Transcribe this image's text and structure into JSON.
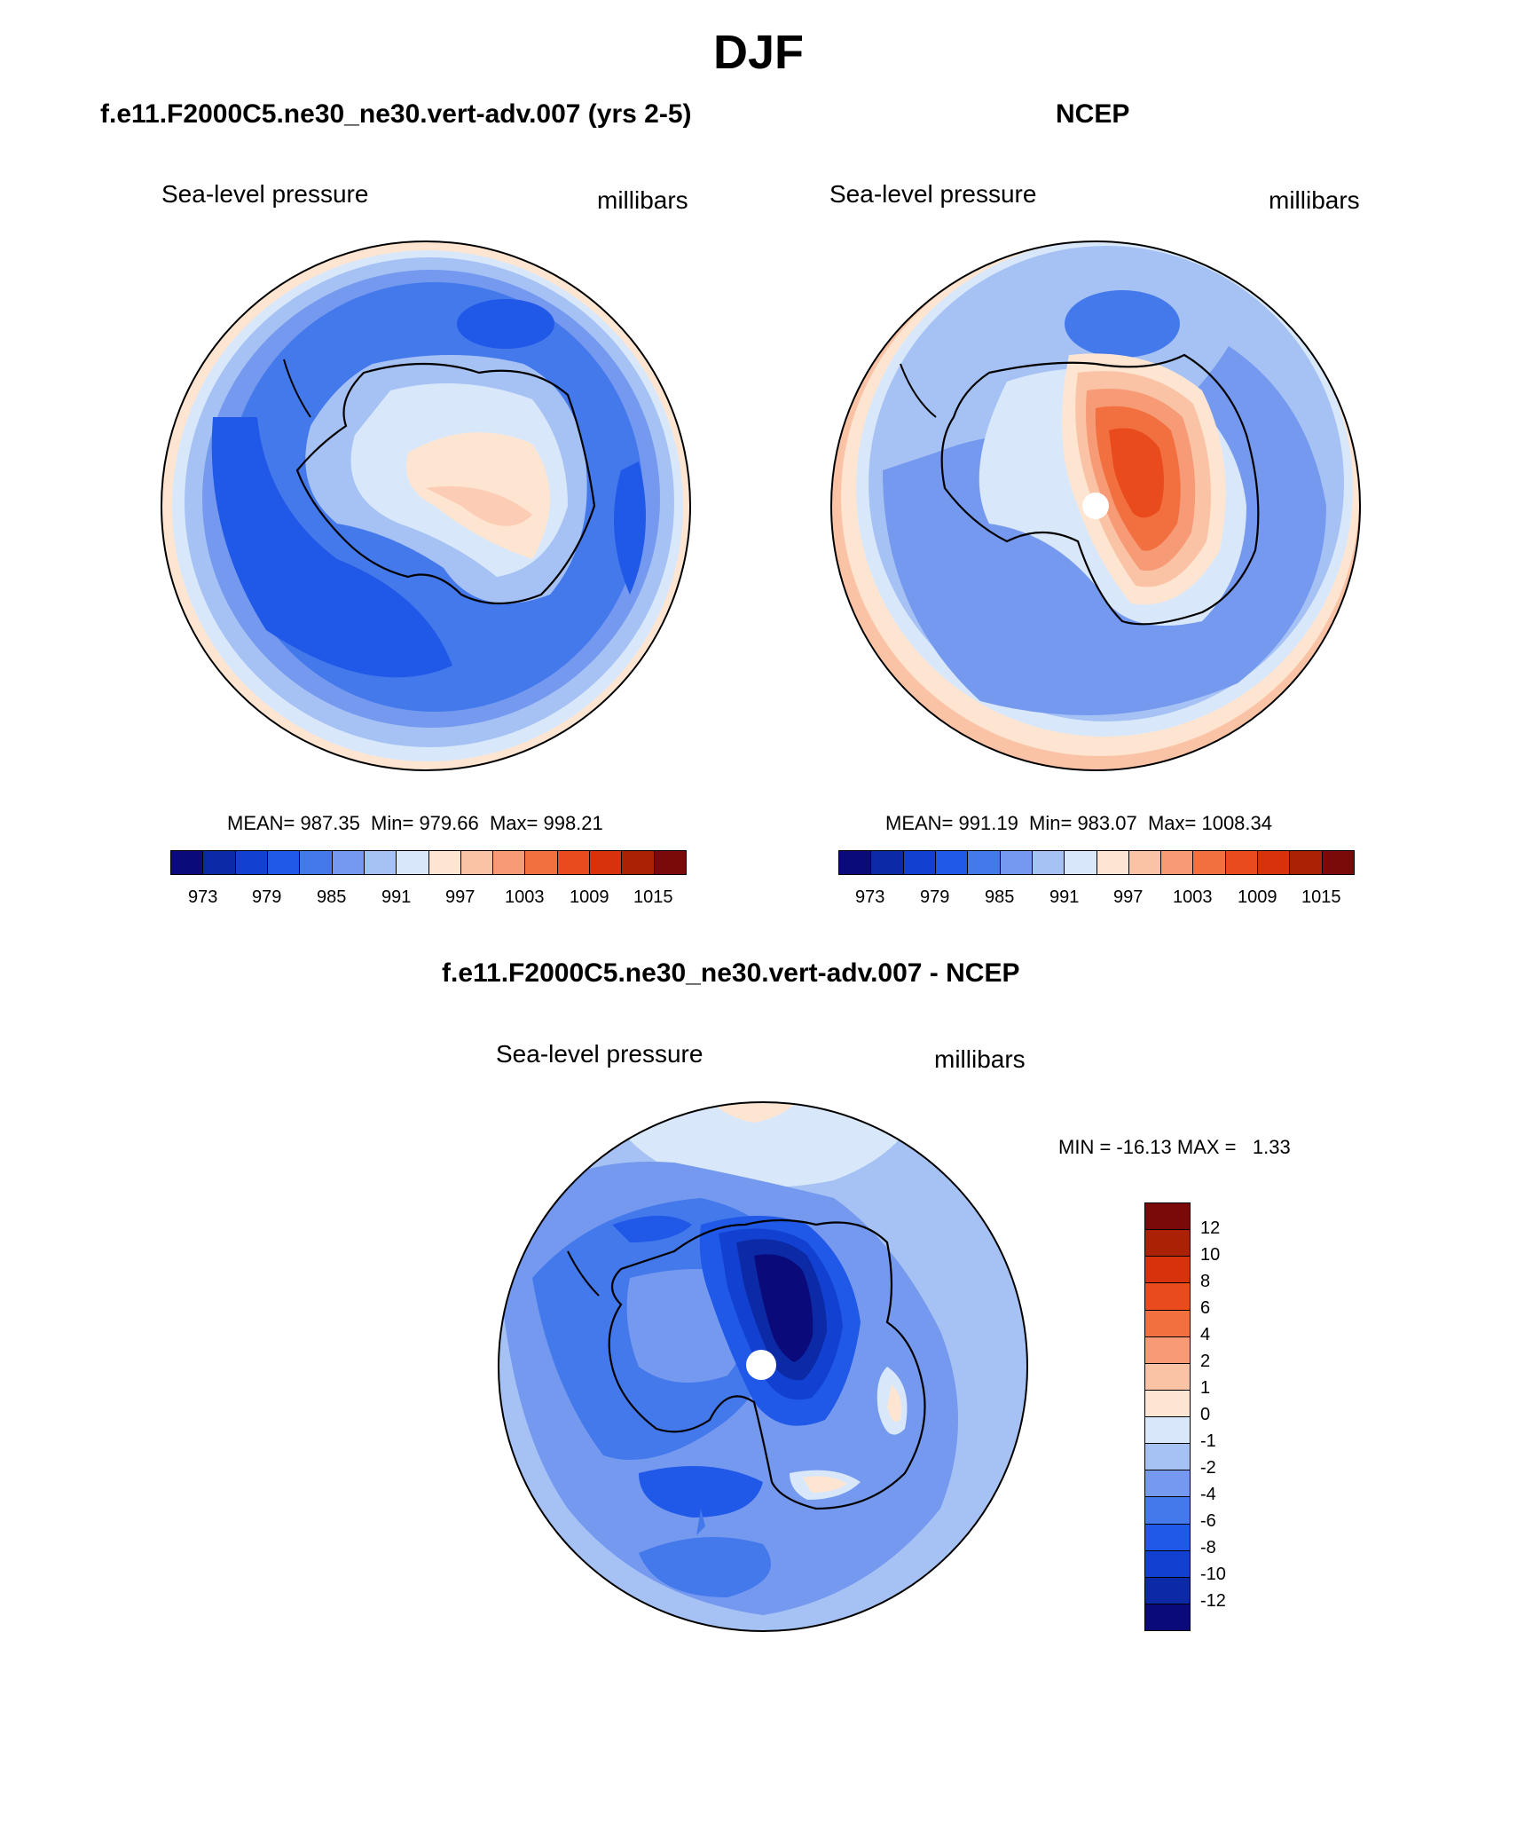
{
  "title": "DJF",
  "panels": [
    {
      "title": "f.e11.F2000C5.ne30_ne30.vert-adv.007 (yrs 2-5)",
      "left_label": "Sea-level pressure",
      "right_label": "millibars",
      "stats": "MEAN= 987.35  Min= 979.66  Max= 998.21",
      "colorbar_ticks": [
        "973",
        "979",
        "985",
        "991",
        "997",
        "1003",
        "1009",
        "1015"
      ]
    },
    {
      "title": "NCEP",
      "left_label": "Sea-level pressure",
      "right_label": "millibars",
      "stats": "MEAN= 991.19  Min= 983.07  Max= 1008.34",
      "colorbar_ticks": [
        "973",
        "979",
        "985",
        "991",
        "997",
        "1003",
        "1009",
        "1015"
      ]
    },
    {
      "title": "f.e11.F2000C5.ne30_ne30.vert-adv.007 - NCEP",
      "left_label": "Sea-level pressure",
      "right_label": "millibars",
      "stats": "MIN = -16.13 MAX =   1.33",
      "colorbar_ticks": [
        "12",
        "10",
        "8",
        "6",
        "4",
        "2",
        "1",
        "0",
        "-1",
        "-2",
        "-4",
        "-6",
        "-8",
        "-10",
        "-12"
      ]
    }
  ],
  "colors": {
    "abs_palette": [
      "#0a0a7a",
      "#0c2aa6",
      "#1240d0",
      "#2058e8",
      "#4479ec",
      "#7499ef",
      "#a6c2f4",
      "#d8e8fa",
      "#fde5d2",
      "#fbc3a6",
      "#f79a76",
      "#f2703f",
      "#ea4b1c",
      "#d8320c",
      "#ab2106",
      "#7a0a0a"
    ],
    "diff_palette_top_to_bottom": [
      "#7a0a0a",
      "#ab2106",
      "#d8320c",
      "#ea4b1c",
      "#f2703f",
      "#f79a76",
      "#fbc3a6",
      "#fde5d2",
      "#d8e8fa",
      "#a6c2f4",
      "#7499ef",
      "#4479ec",
      "#2058e8",
      "#1240d0",
      "#0c2aa6",
      "#0a0a7a"
    ]
  }
}
